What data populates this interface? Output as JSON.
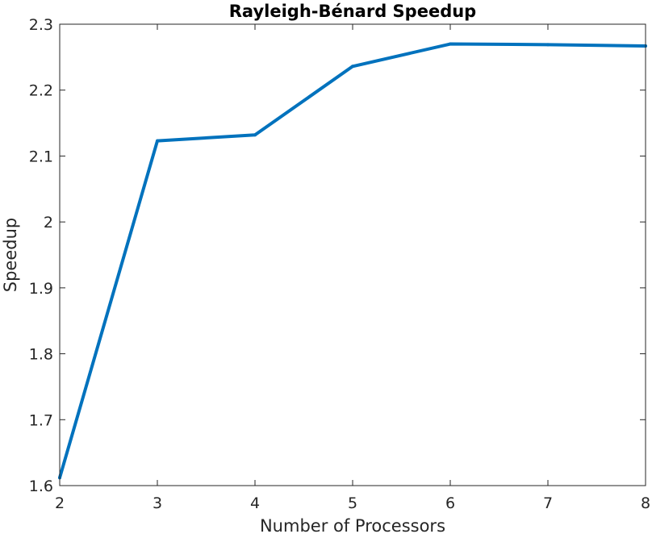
{
  "chart_data": {
    "type": "line",
    "title": "Rayleigh-Bénard Speedup",
    "xlabel": "Number of Processors",
    "ylabel": "Speedup",
    "xlim": [
      2,
      8
    ],
    "ylim": [
      1.6,
      2.3
    ],
    "xticks": [
      2,
      3,
      4,
      5,
      6,
      7,
      8
    ],
    "xtick_labels": [
      "2",
      "3",
      "4",
      "5",
      "6",
      "7",
      "8"
    ],
    "yticks": [
      1.6,
      1.7,
      1.8,
      1.9,
      2.0,
      2.1,
      2.2,
      2.3
    ],
    "ytick_labels": [
      "1.6",
      "1.7",
      "1.8",
      "1.9",
      "2",
      "2.1",
      "2.2",
      "2.3"
    ],
    "grid": false,
    "series": [
      {
        "color": "#0072bd",
        "x": [
          2,
          3,
          4,
          5,
          6,
          7,
          8
        ],
        "y": [
          1.612,
          2.123,
          2.132,
          2.236,
          2.27,
          2.269,
          2.267
        ]
      }
    ]
  }
}
